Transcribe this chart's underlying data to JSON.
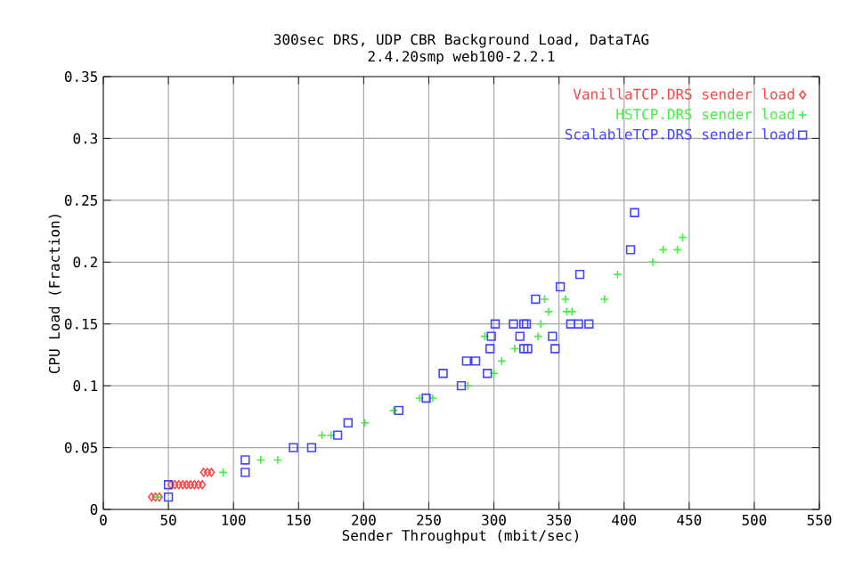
{
  "chart_data": {
    "type": "scatter",
    "title": "300sec DRS, UDP CBR Background Load, DataTAG",
    "subtitle": "2.4.20smp web100-2.2.1",
    "xlabel": "Sender Throughput (mbit/sec)",
    "ylabel": "CPU Load (Fraction)",
    "xlim": [
      0,
      550
    ],
    "xticks": [
      0,
      50,
      100,
      150,
      200,
      250,
      300,
      350,
      400,
      450,
      500,
      550
    ],
    "ylim": [
      0,
      0.35
    ],
    "yticks": [
      0,
      0.05,
      0.1,
      0.15,
      0.2,
      0.25,
      0.3,
      0.35
    ],
    "grid": true,
    "legend": "top right",
    "series": [
      {
        "name": "VanillaTCP.DRS sender load",
        "color": "#ff4444",
        "marker": "diamond",
        "x": [
          37,
          40,
          43,
          52,
          55,
          58,
          61,
          64,
          67,
          70,
          73,
          76,
          77,
          80,
          83
        ],
        "values": [
          0.01,
          0.01,
          0.01,
          0.02,
          0.02,
          0.02,
          0.02,
          0.02,
          0.02,
          0.02,
          0.02,
          0.02,
          0.03,
          0.03,
          0.03
        ]
      },
      {
        "name": "HSTCP.DRS sender load",
        "color": "#44ee44",
        "marker": "cross",
        "x": [
          42,
          92,
          121,
          134,
          168,
          175,
          201,
          223,
          243,
          253,
          280,
          300,
          306,
          316,
          293,
          334,
          336,
          342,
          356,
          360,
          339,
          355,
          385,
          395,
          422,
          430,
          441,
          445
        ],
        "values": [
          0.01,
          0.03,
          0.04,
          0.04,
          0.06,
          0.06,
          0.07,
          0.08,
          0.09,
          0.09,
          0.1,
          0.11,
          0.12,
          0.13,
          0.14,
          0.14,
          0.15,
          0.16,
          0.16,
          0.16,
          0.17,
          0.17,
          0.17,
          0.19,
          0.2,
          0.21,
          0.21,
          0.22
        ]
      },
      {
        "name": "ScalableTCP.DRS sender load",
        "color": "#4444ff",
        "marker": "square",
        "x": [
          50,
          50,
          109,
          109,
          146,
          160,
          180,
          188,
          227,
          248,
          275,
          261,
          295,
          279,
          286,
          297,
          323,
          326,
          347,
          298,
          320,
          345,
          301,
          315,
          323,
          325,
          359,
          365,
          373,
          332,
          351,
          366,
          405,
          408
        ],
        "values": [
          0.01,
          0.02,
          0.03,
          0.04,
          0.05,
          0.05,
          0.06,
          0.07,
          0.08,
          0.09,
          0.1,
          0.11,
          0.11,
          0.12,
          0.12,
          0.13,
          0.13,
          0.13,
          0.13,
          0.14,
          0.14,
          0.14,
          0.15,
          0.15,
          0.15,
          0.15,
          0.15,
          0.15,
          0.15,
          0.17,
          0.18,
          0.19,
          0.21,
          0.24
        ]
      }
    ]
  }
}
